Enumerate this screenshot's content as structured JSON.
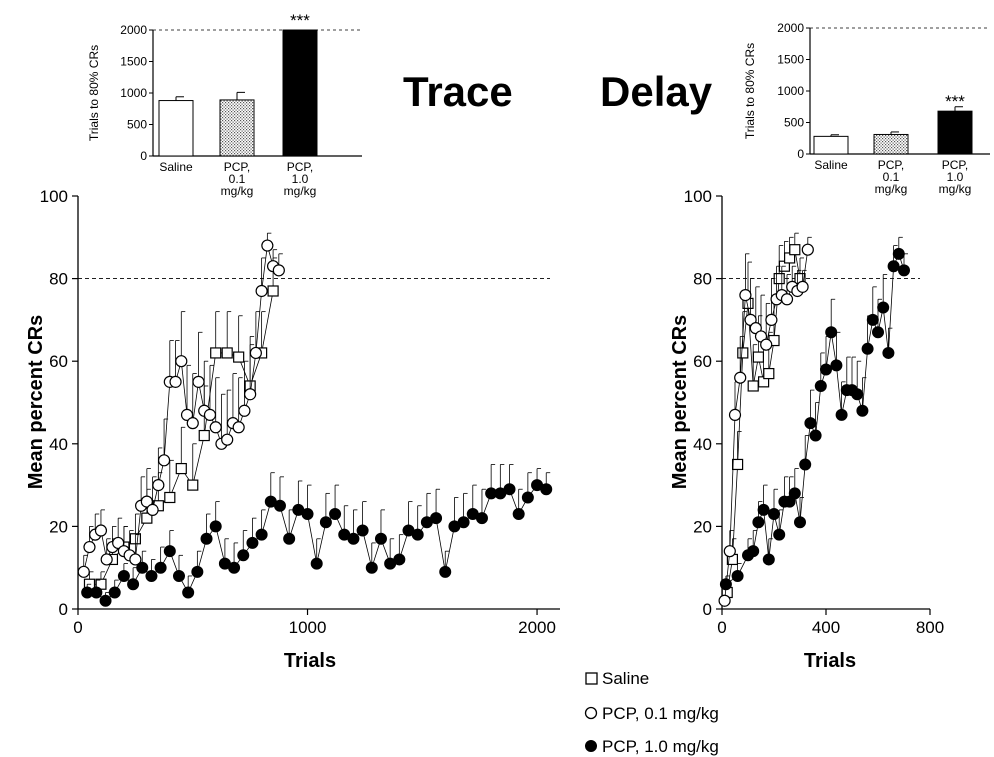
{
  "headings": {
    "left": "Trace",
    "right": "Delay"
  },
  "legend": [
    {
      "marker": "open-square",
      "label": "Saline"
    },
    {
      "marker": "open-circle",
      "label": "PCP, 0.1 mg/kg"
    },
    {
      "marker": "filled-circle",
      "label": "PCP, 1.0 mg/kg"
    }
  ],
  "chart_data": [
    {
      "id": "trace-bars",
      "type": "bar",
      "ylabel": "Trials to 80% CRs",
      "ylim": [
        0,
        2000
      ],
      "yticks": [
        "0",
        "500",
        "1000",
        "1500",
        "2000"
      ],
      "reference_line": 2000,
      "categories": [
        [
          "Saline"
        ],
        [
          "PCP,",
          "0.1",
          "mg/kg"
        ],
        [
          "PCP,",
          "1.0",
          "mg/kg"
        ]
      ],
      "values": [
        880,
        890,
        2000
      ],
      "errors": [
        60,
        120,
        0
      ],
      "fills": [
        "white",
        "stipple",
        "black"
      ],
      "significance": [
        null,
        null,
        "***"
      ]
    },
    {
      "id": "delay-bars",
      "type": "bar",
      "ylabel": "Trials to 80% CRs",
      "ylim": [
        0,
        2000
      ],
      "yticks": [
        "0",
        "500",
        "1000",
        "1500",
        "2000"
      ],
      "reference_line": 2000,
      "categories": [
        [
          "Saline"
        ],
        [
          "PCP,",
          "0.1",
          "mg/kg"
        ],
        [
          "PCP,",
          "1.0",
          "mg/kg"
        ]
      ],
      "values": [
        280,
        310,
        680
      ],
      "errors": [
        25,
        40,
        70
      ],
      "fills": [
        "white",
        "stipple",
        "black"
      ],
      "significance": [
        null,
        null,
        "***"
      ]
    },
    {
      "id": "trace-curve",
      "type": "scatter",
      "xlabel": "Trials",
      "ylabel": "Mean percent CRs",
      "xlim": [
        0,
        2100
      ],
      "ylim": [
        0,
        100
      ],
      "xticks": [
        "0",
        "1000",
        "2000"
      ],
      "yticks": [
        "0",
        "20",
        "40",
        "60",
        "80",
        "100"
      ],
      "reference_line": 80,
      "series": [
        {
          "name": "Saline",
          "marker": "open-square",
          "x": [
            50,
            100,
            150,
            200,
            250,
            300,
            350,
            400,
            450,
            500,
            550,
            600,
            650,
            700,
            750,
            800,
            850
          ],
          "y": [
            6,
            6,
            12,
            15,
            17,
            22,
            25,
            27,
            34,
            30,
            42,
            62,
            62,
            61,
            54,
            62,
            77
          ],
          "err": [
            3,
            3,
            5,
            5,
            6,
            7,
            8,
            9,
            10,
            10,
            12,
            10,
            10,
            10,
            12,
            10,
            8
          ]
        },
        {
          "name": "PCP, 0.1 mg/kg",
          "marker": "open-circle",
          "x": [
            25,
            50,
            75,
            100,
            125,
            150,
            175,
            200,
            225,
            250,
            275,
            300,
            325,
            350,
            375,
            400,
            425,
            450,
            475,
            500,
            525,
            550,
            575,
            600,
            625,
            650,
            675,
            700,
            725,
            750,
            775,
            800,
            825,
            850,
            875
          ],
          "y": [
            9,
            15,
            18,
            19,
            12,
            15,
            16,
            14,
            13,
            12,
            25,
            26,
            24,
            30,
            36,
            55,
            55,
            60,
            47,
            45,
            55,
            48,
            47,
            44,
            40,
            41,
            45,
            44,
            48,
            52,
            62,
            77,
            88,
            83,
            82
          ],
          "err": [
            4,
            5,
            5,
            5,
            5,
            5,
            6,
            6,
            6,
            6,
            7,
            8,
            8,
            9,
            10,
            10,
            10,
            12,
            12,
            12,
            12,
            12,
            12,
            12,
            12,
            12,
            12,
            12,
            12,
            12,
            10,
            8,
            3,
            4,
            4
          ]
        },
        {
          "name": "PCP, 1.0 mg/kg",
          "marker": "filled-circle",
          "x": [
            40,
            80,
            120,
            160,
            200,
            240,
            280,
            320,
            360,
            400,
            440,
            480,
            520,
            560,
            600,
            640,
            680,
            720,
            760,
            800,
            840,
            880,
            920,
            960,
            1000,
            1040,
            1080,
            1120,
            1160,
            1200,
            1240,
            1280,
            1320,
            1360,
            1400,
            1440,
            1480,
            1520,
            1560,
            1600,
            1640,
            1680,
            1720,
            1760,
            1800,
            1840,
            1880,
            1920,
            1960,
            2000,
            2040
          ],
          "y": [
            4,
            4,
            2,
            4,
            8,
            6,
            10,
            8,
            10,
            14,
            8,
            4,
            9,
            17,
            20,
            11,
            10,
            13,
            16,
            18,
            26,
            25,
            17,
            24,
            23,
            11,
            21,
            23,
            18,
            17,
            19,
            10,
            17,
            11,
            12,
            19,
            18,
            21,
            22,
            9,
            20,
            21,
            23,
            22,
            28,
            28,
            29,
            23,
            27,
            30,
            29
          ],
          "err": [
            2,
            3,
            2,
            3,
            3,
            4,
            4,
            4,
            5,
            5,
            5,
            4,
            5,
            6,
            6,
            6,
            6,
            6,
            6,
            6,
            7,
            7,
            7,
            7,
            7,
            6,
            7,
            7,
            7,
            7,
            7,
            6,
            7,
            6,
            6,
            7,
            7,
            7,
            7,
            5,
            7,
            7,
            7,
            7,
            7,
            7,
            6,
            6,
            6,
            4,
            4
          ]
        }
      ]
    },
    {
      "id": "delay-curve",
      "type": "scatter",
      "xlabel": "Trials",
      "ylabel": "Mean percent CRs",
      "xlim": [
        0,
        800
      ],
      "ylim": [
        0,
        100
      ],
      "xticks": [
        "0",
        "400",
        "800"
      ],
      "yticks": [
        "0",
        "20",
        "40",
        "60",
        "80",
        "100"
      ],
      "reference_line": 80,
      "series": [
        {
          "name": "Saline",
          "marker": "open-square",
          "x": [
            20,
            40,
            60,
            80,
            100,
            120,
            140,
            160,
            180,
            200,
            220,
            240,
            260,
            280,
            300
          ],
          "y": [
            4,
            12,
            35,
            62,
            74,
            54,
            61,
            55,
            57,
            65,
            80,
            83,
            85,
            87,
            80
          ],
          "err": [
            2,
            5,
            8,
            10,
            10,
            10,
            10,
            10,
            10,
            10,
            8,
            6,
            5,
            4,
            5
          ]
        },
        {
          "name": "PCP, 0.1 mg/kg",
          "marker": "open-circle",
          "x": [
            10,
            30,
            50,
            70,
            90,
            110,
            130,
            150,
            170,
            190,
            210,
            230,
            250,
            270,
            290,
            310,
            330
          ],
          "y": [
            2,
            14,
            47,
            56,
            76,
            70,
            68,
            66,
            64,
            70,
            75,
            76,
            75,
            78,
            77,
            78,
            87
          ],
          "err": [
            1,
            5,
            8,
            10,
            10,
            10,
            10,
            10,
            10,
            10,
            8,
            7,
            6,
            5,
            5,
            4,
            3
          ]
        },
        {
          "name": "PCP, 1.0 mg/kg",
          "marker": "filled-circle",
          "x": [
            15,
            60,
            100,
            120,
            140,
            160,
            180,
            200,
            220,
            240,
            260,
            280,
            300,
            320,
            340,
            360,
            380,
            400,
            420,
            440,
            460,
            480,
            500,
            520,
            540,
            560,
            580,
            600,
            620,
            640,
            660,
            680,
            700
          ],
          "y": [
            6,
            8,
            13,
            14,
            21,
            24,
            12,
            23,
            18,
            26,
            26,
            28,
            21,
            35,
            45,
            42,
            54,
            58,
            67,
            59,
            47,
            53,
            53,
            52,
            48,
            63,
            70,
            67,
            73,
            62,
            83,
            86,
            82
          ],
          "err": [
            2,
            3,
            4,
            5,
            5,
            6,
            5,
            6,
            6,
            6,
            6,
            6,
            6,
            7,
            8,
            8,
            8,
            8,
            8,
            8,
            8,
            8,
            8,
            8,
            8,
            8,
            8,
            8,
            8,
            6,
            5,
            4,
            4
          ]
        }
      ]
    }
  ]
}
